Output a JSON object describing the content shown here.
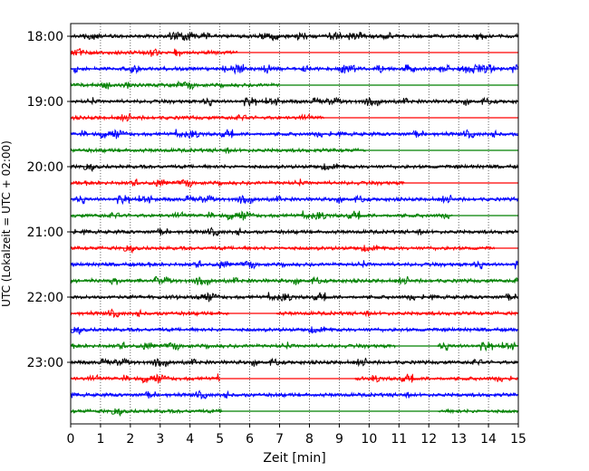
{
  "chart_data": {
    "type": "line",
    "title": "",
    "xlabel": "Zeit  [min]",
    "ylabel": "UTC (Lokalzeit = UTC + 02:00)",
    "xlim": [
      0,
      15
    ],
    "x_ticks": [
      "0",
      "1",
      "2",
      "3",
      "4",
      "5",
      "6",
      "7",
      "8",
      "9",
      "10",
      "11",
      "12",
      "13",
      "14",
      "15"
    ],
    "y_ticks": [
      "18:00",
      "19:00",
      "20:00",
      "21:00",
      "22:00",
      "23:00"
    ],
    "grid": "vertical dotted",
    "legend": "none",
    "series_colors": [
      "#000000",
      "#ff0000",
      "#0000ff",
      "#008000"
    ],
    "traces": [
      {
        "start": "18:00",
        "color": "#000000",
        "active_from_min": 0,
        "active_to_min": 15
      },
      {
        "start": "18:15",
        "color": "#ff0000",
        "active_from_min": 0,
        "active_to_min": 5.6
      },
      {
        "start": "18:30",
        "color": "#0000ff",
        "active_from_min": 0,
        "active_to_min": 15
      },
      {
        "start": "18:45",
        "color": "#008000",
        "active_from_min": 0,
        "active_to_min": 7.0
      },
      {
        "start": "19:00",
        "color": "#000000",
        "active_from_min": 0,
        "active_to_min": 15
      },
      {
        "start": "19:15",
        "color": "#ff0000",
        "active_from_min": 0,
        "active_to_min": 8.5
      },
      {
        "start": "19:30",
        "color": "#0000ff",
        "active_from_min": 0,
        "active_to_min": 15
      },
      {
        "start": "19:45",
        "color": "#008000",
        "active_from_min": 0,
        "active_to_min": 9.9
      },
      {
        "start": "20:00",
        "color": "#000000",
        "active_from_min": 0,
        "active_to_min": 15
      },
      {
        "start": "20:15",
        "color": "#ff0000",
        "active_from_min": 0,
        "active_to_min": 11.2
      },
      {
        "start": "20:30",
        "color": "#0000ff",
        "active_from_min": 0,
        "active_to_min": 15
      },
      {
        "start": "20:45",
        "color": "#008000",
        "active_from_min": 0,
        "active_to_min": 12.8
      },
      {
        "start": "21:00",
        "color": "#000000",
        "active_from_min": 0,
        "active_to_min": 15
      },
      {
        "start": "21:15",
        "color": "#ff0000",
        "active_from_min": 0,
        "active_to_min": 14.2
      },
      {
        "start": "21:30",
        "color": "#0000ff",
        "active_from_min": 0,
        "active_to_min": 15
      },
      {
        "start": "21:45",
        "color": "#008000",
        "active_from_min": 0,
        "active_to_min": 15
      },
      {
        "start": "22:00",
        "color": "#000000",
        "active_from_min": 0,
        "active_to_min": 15
      },
      {
        "start": "22:15",
        "color": "#ff0000",
        "active_from_min": 0,
        "active_to_min": 15,
        "quiet_from_min": 5.3,
        "quiet_to_min": 6.9
      },
      {
        "start": "22:30",
        "color": "#0000ff",
        "active_from_min": 0,
        "active_to_min": 15
      },
      {
        "start": "22:45",
        "color": "#008000",
        "active_from_min": 0,
        "active_to_min": 15,
        "quiet_from_min": 10.9,
        "quiet_to_min": 12.3
      },
      {
        "start": "23:00",
        "color": "#000000",
        "active_from_min": 0,
        "active_to_min": 15
      },
      {
        "start": "23:15",
        "color": "#ff0000",
        "active_from_min": 0,
        "active_to_min": 15,
        "quiet_from_min": 5.0,
        "quiet_to_min": 9.5
      },
      {
        "start": "23:30",
        "color": "#0000ff",
        "active_from_min": 0,
        "active_to_min": 15
      },
      {
        "start": "23:45",
        "color": "#008000",
        "active_from_min": 0,
        "active_to_min": 15,
        "quiet_from_min": 5.1,
        "quiet_to_min": 12.3
      }
    ]
  }
}
